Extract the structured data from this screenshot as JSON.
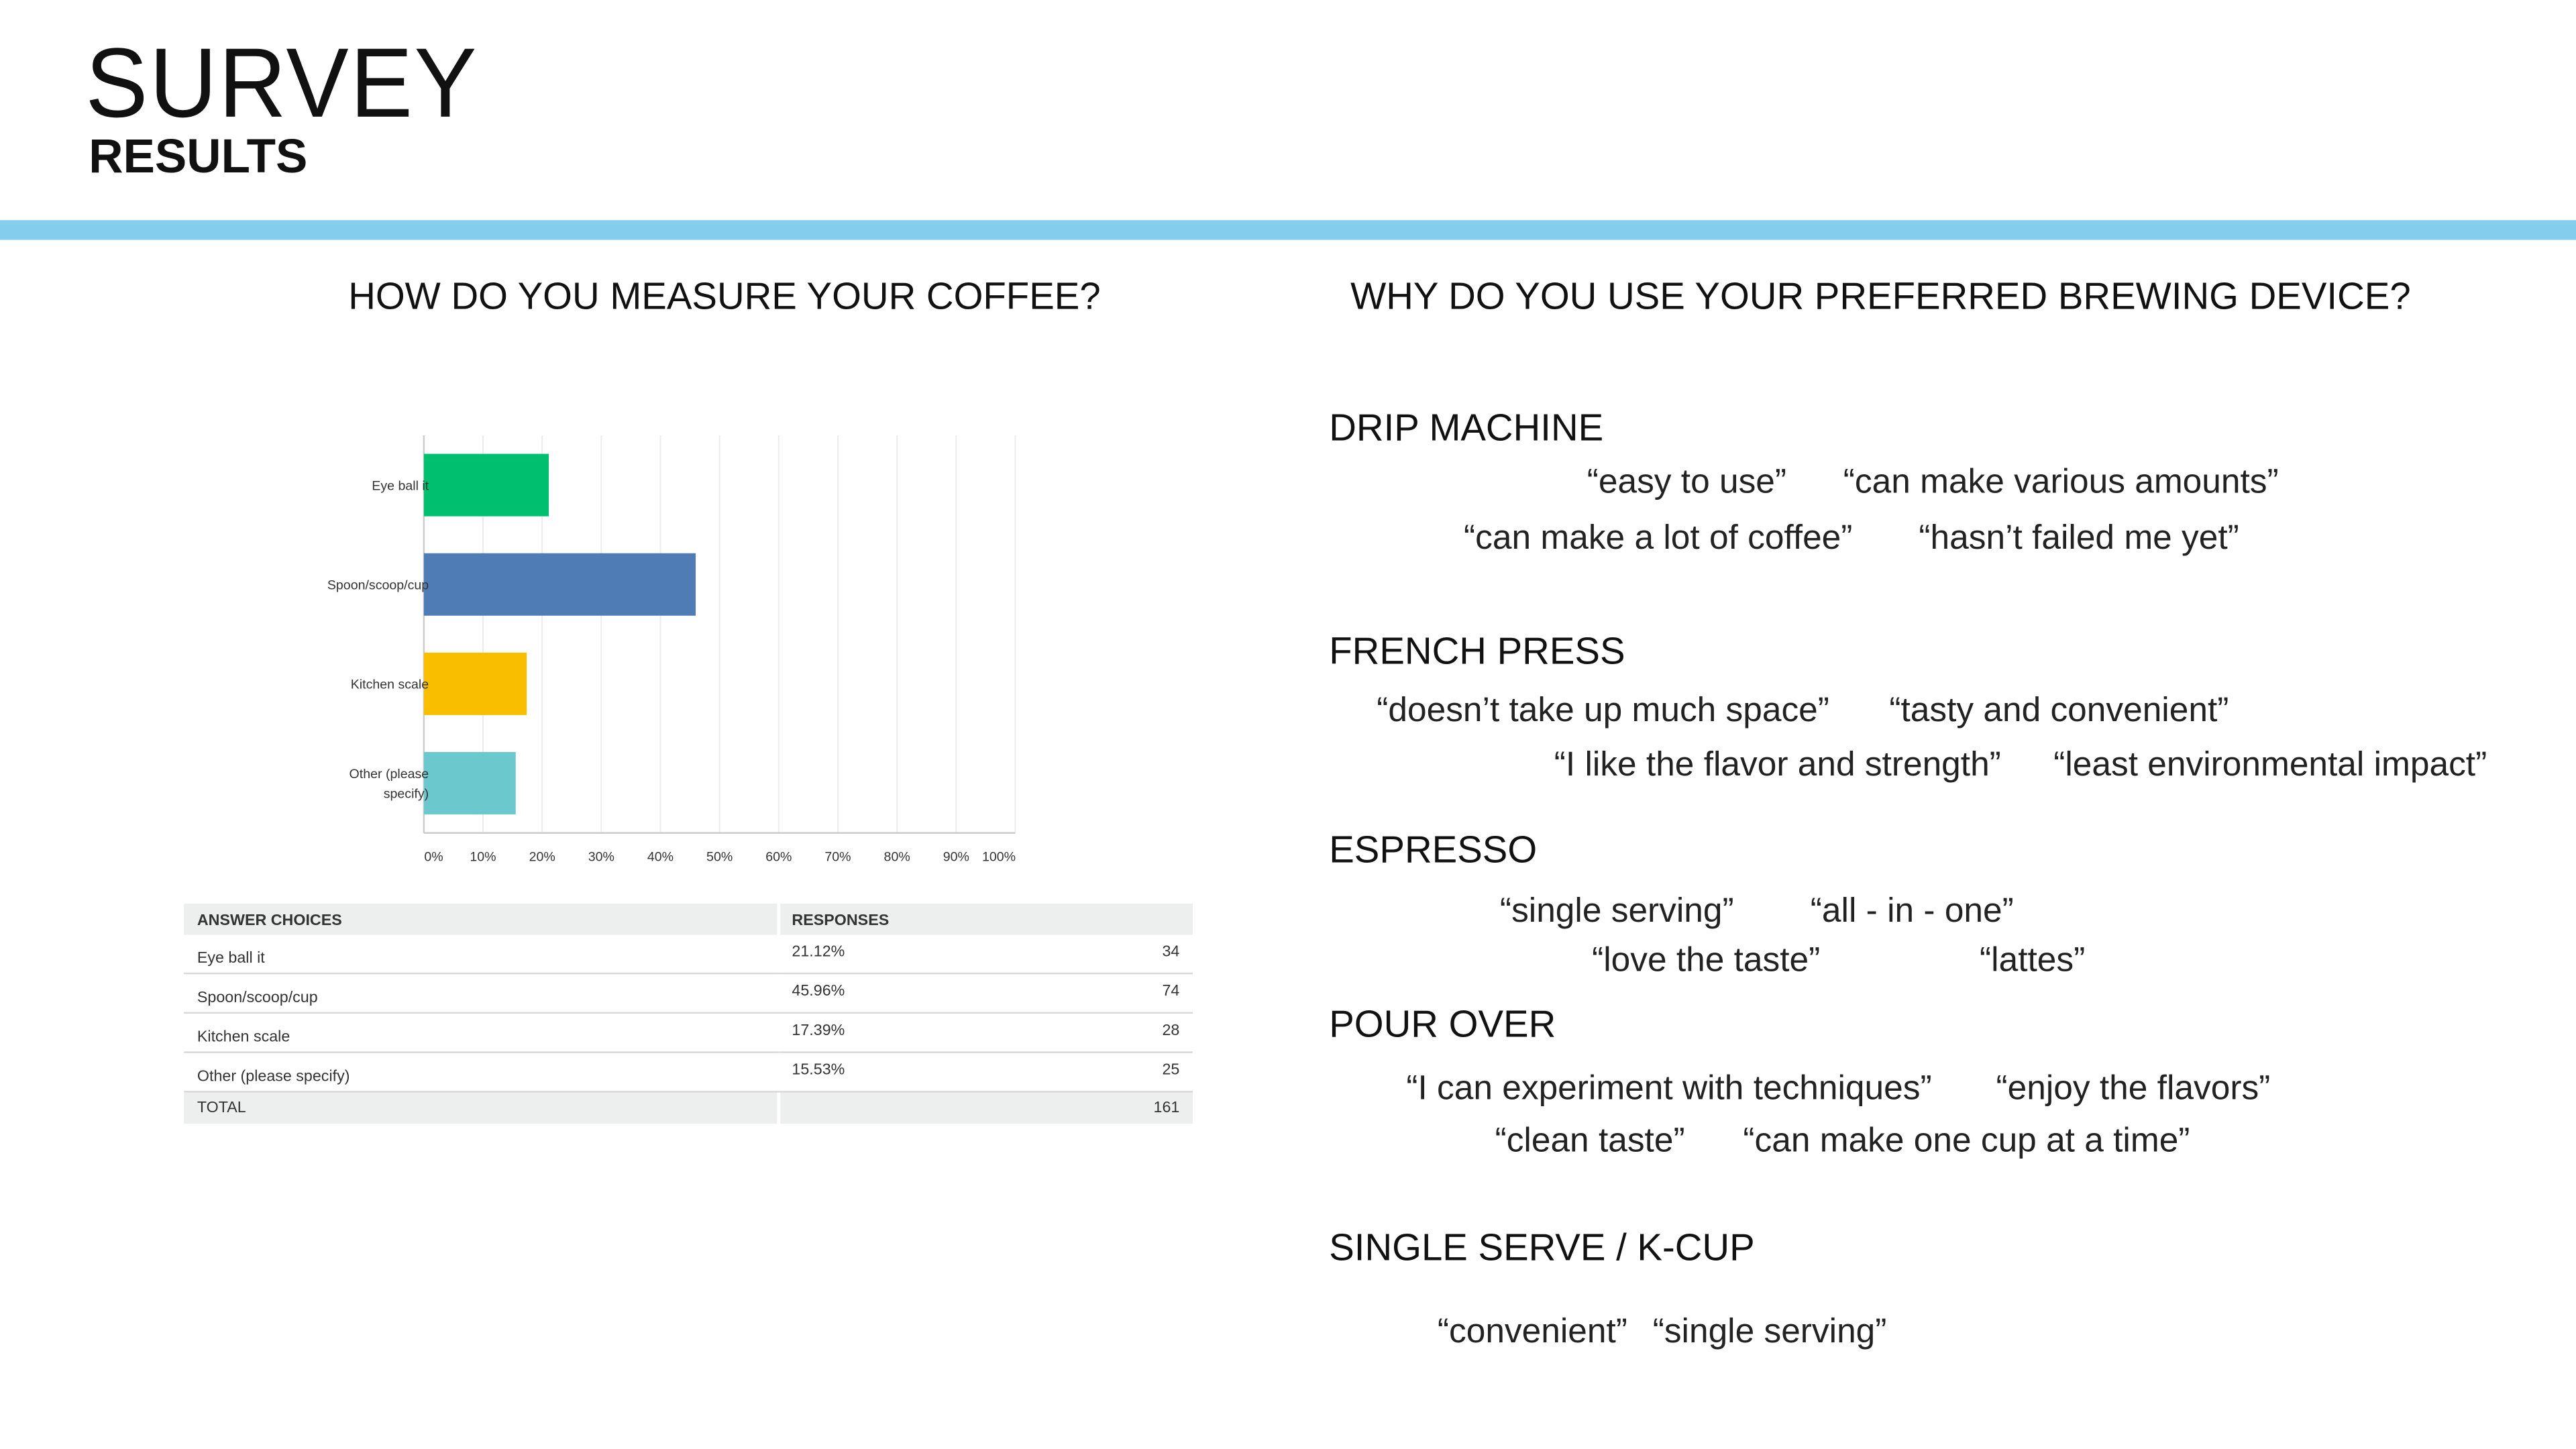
{
  "header": {
    "title": "SURVEY",
    "subtitle": "RESULTS",
    "accent_color": "#84cdec"
  },
  "left": {
    "question": "HOW DO YOU MEASURE YOUR COFFEE?"
  },
  "right": {
    "question": "WHY DO YOU USE YOUR PREFERRED BREWING DEVICE?",
    "sections": [
      {
        "title": "DRIP MACHINE",
        "quotes": [
          "“easy to use”",
          "“can make various amounts”",
          "“can make a lot of coffee”",
          "“hasn’t failed me yet”"
        ]
      },
      {
        "title": "FRENCH PRESS",
        "quotes": [
          "“doesn’t take up much space”",
          "“tasty and convenient”",
          "“I like the flavor and strength”",
          "“least environmental impact”"
        ]
      },
      {
        "title": "ESPRESSO",
        "quotes": [
          "“single serving”",
          "“all - in - one”",
          "“love the taste”",
          "“lattes”"
        ]
      },
      {
        "title": "POUR OVER",
        "quotes": [
          "“I can experiment with techniques”",
          "“enjoy the flavors”",
          "“clean taste”",
          "“can make one cup at a time”"
        ]
      },
      {
        "title": "SINGLE SERVE / K-CUP",
        "quotes": [
          "“convenient”",
          "“single serving”"
        ]
      }
    ]
  },
  "chart_data": {
    "type": "bar",
    "orientation": "horizontal",
    "categories": [
      "Eye ball it",
      "Spoon/scoop/cup",
      "Kitchen scale",
      "Other (please specify)"
    ],
    "category_lines": [
      [
        "Eye ball it"
      ],
      [
        "Spoon/scoop/cup"
      ],
      [
        "Kitchen scale"
      ],
      [
        "Other (please",
        "specify)"
      ]
    ],
    "values": [
      21.12,
      45.96,
      17.39,
      15.53
    ],
    "colors": [
      "#00bf6f",
      "#507cb6",
      "#f9be00",
      "#6bc8cd"
    ],
    "xlim": [
      0,
      100
    ],
    "xticks": [
      "0%",
      "10%",
      "20%",
      "30%",
      "40%",
      "50%",
      "60%",
      "70%",
      "80%",
      "90%",
      "100%"
    ],
    "grid": true
  },
  "table": {
    "headers": [
      "ANSWER CHOICES",
      "RESPONSES"
    ],
    "rows": [
      {
        "choice": "Eye ball it",
        "percent": "21.12%",
        "count": "34"
      },
      {
        "choice": "Spoon/scoop/cup",
        "percent": "45.96%",
        "count": "74"
      },
      {
        "choice": "Kitchen scale",
        "percent": "17.39%",
        "count": "28"
      },
      {
        "choice": "Other (please specify)",
        "percent": "15.53%",
        "count": "25"
      }
    ],
    "total_label": "TOTAL",
    "total": "161"
  }
}
